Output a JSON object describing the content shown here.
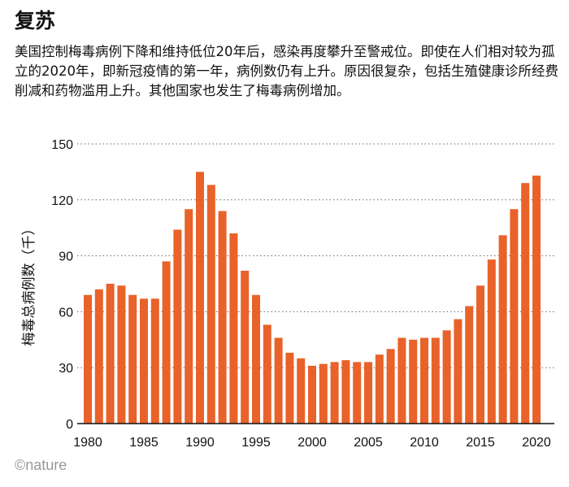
{
  "title": "复苏",
  "description": "美国控制梅毒病例下降和维持低位20年后，感染再度攀升至警戒位。即使在人们相对较为孤立的2020年，即新冠疫情的第一年，病例数仍有上升。原因很复杂，包括生殖健康诊所经费削减和药物滥用上升。其他国家也发生了梅毒病例增加。",
  "logo": "©nature",
  "chart_data": {
    "type": "bar",
    "title": "",
    "xlabel": "",
    "ylabel": "梅毒总病例数（千）",
    "ylim": [
      0,
      150
    ],
    "yticks": [
      0,
      30,
      60,
      90,
      120,
      150
    ],
    "xticks": [
      1980,
      1985,
      1990,
      1995,
      2000,
      2005,
      2010,
      2015,
      2020
    ],
    "grid": "horizontal dotted",
    "bar_color": "#e8622a",
    "categories": [
      1980,
      1981,
      1982,
      1983,
      1984,
      1985,
      1986,
      1987,
      1988,
      1989,
      1990,
      1991,
      1992,
      1993,
      1994,
      1995,
      1996,
      1997,
      1998,
      1999,
      2000,
      2001,
      2002,
      2003,
      2004,
      2005,
      2006,
      2007,
      2008,
      2009,
      2010,
      2011,
      2012,
      2013,
      2014,
      2015,
      2016,
      2017,
      2018,
      2019,
      2020
    ],
    "values": [
      69,
      72,
      75,
      74,
      69,
      67,
      67,
      87,
      104,
      115,
      135,
      128,
      114,
      102,
      82,
      69,
      53,
      46,
      38,
      35,
      31,
      32,
      33,
      34,
      33,
      33,
      37,
      40,
      46,
      45,
      46,
      46,
      50,
      56,
      63,
      74,
      88,
      101,
      115,
      129,
      133
    ]
  }
}
